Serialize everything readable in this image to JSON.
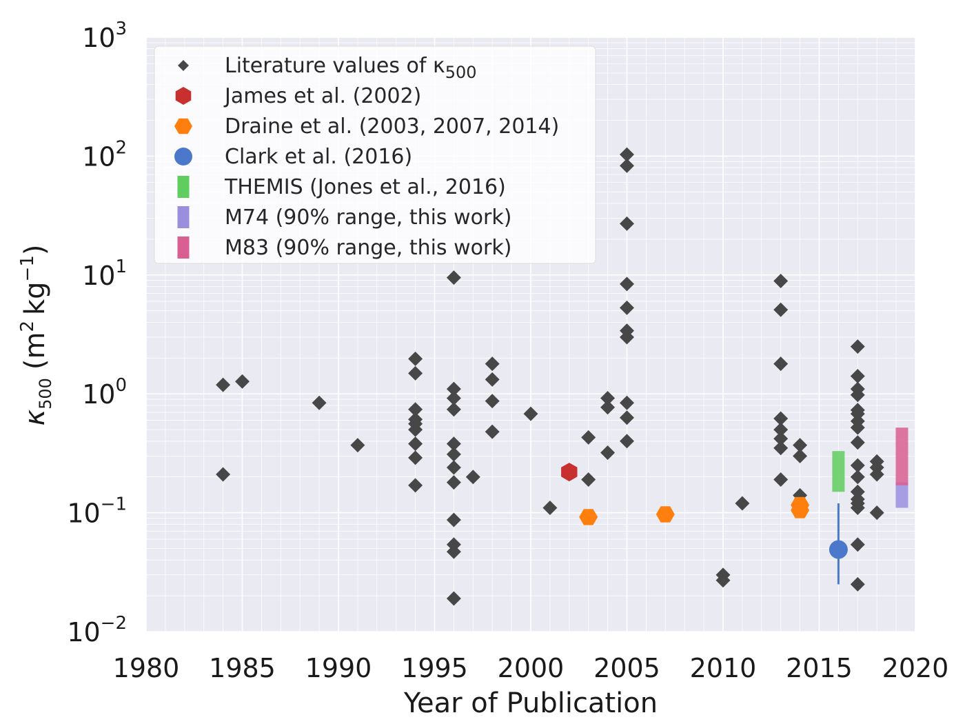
{
  "chart_data": {
    "type": "scatter",
    "xlabel": "Year of Publication",
    "ylabel": {
      "symbol": "κ",
      "sub": "500",
      "units": "(m",
      "units_sup1": "2",
      "units_mid": "kg",
      "units_sup2": "−1",
      "units_end": ")"
    },
    "xlim": [
      1980,
      2020
    ],
    "ylim": [
      0.01,
      1000
    ],
    "yscale": "log",
    "grid": true,
    "legend_position": "top-left",
    "x_ticks": [
      1980,
      1985,
      1990,
      1995,
      2000,
      2005,
      2010,
      2015,
      2020
    ],
    "y_ticks": [
      {
        "value": 0.01,
        "base": "10",
        "exp": "−2"
      },
      {
        "value": 0.1,
        "base": "10",
        "exp": "−1"
      },
      {
        "value": 1,
        "base": "10",
        "exp": "0"
      },
      {
        "value": 10,
        "base": "10",
        "exp": "1"
      },
      {
        "value": 100,
        "base": "10",
        "exp": "2"
      },
      {
        "value": 1000,
        "base": "10",
        "exp": "3"
      }
    ],
    "legend": [
      {
        "label": "Literature values of κ",
        "label_sub": "500",
        "marker": "diamond",
        "color": "#474747"
      },
      {
        "label": "James et al. (2002)",
        "marker": "hexagon",
        "color": "#c8302f"
      },
      {
        "label": "Draine et al. (2003, 2007, 2014)",
        "marker": "hexagon",
        "color": "#ff7f0e"
      },
      {
        "label": "Clark et al. (2016)",
        "marker": "circle",
        "color": "#4c78cb"
      },
      {
        "label": "THEMIS (Jones et al., 2016)",
        "marker": "rect",
        "color": "#5fce5f"
      },
      {
        "label": "M74 (90% range, this work)",
        "marker": "rect",
        "color": "#9a8fdf"
      },
      {
        "label": "M83 (90% range, this work)",
        "marker": "rect",
        "color": "#d95f92"
      }
    ],
    "series": [
      {
        "name": "Literature values of κ500",
        "marker": "diamond",
        "color": "#474747",
        "points": [
          [
            1984,
            1.19
          ],
          [
            1984,
            0.21
          ],
          [
            1985,
            1.27
          ],
          [
            1989,
            0.84
          ],
          [
            1991,
            0.37
          ],
          [
            1994,
            1.97
          ],
          [
            1994,
            1.49
          ],
          [
            1994,
            0.74
          ],
          [
            1994,
            0.61
          ],
          [
            1994,
            0.56
          ],
          [
            1994,
            0.5
          ],
          [
            1994,
            0.38
          ],
          [
            1994,
            0.29
          ],
          [
            1994,
            0.17
          ],
          [
            1996,
            9.5
          ],
          [
            1996,
            1.1
          ],
          [
            1996,
            0.92
          ],
          [
            1996,
            0.74
          ],
          [
            1996,
            0.38
          ],
          [
            1996,
            0.31
          ],
          [
            1996,
            0.24
          ],
          [
            1996,
            0.18
          ],
          [
            1996,
            0.087
          ],
          [
            1996,
            0.054
          ],
          [
            1996,
            0.047
          ],
          [
            1996,
            0.019
          ],
          [
            1997,
            0.2
          ],
          [
            1998,
            1.79
          ],
          [
            1998,
            1.32
          ],
          [
            1998,
            0.87
          ],
          [
            1998,
            0.48
          ],
          [
            2000,
            0.68
          ],
          [
            2001,
            0.11
          ],
          [
            2003,
            0.43
          ],
          [
            2003,
            0.19
          ],
          [
            2004,
            0.92
          ],
          [
            2004,
            0.77
          ],
          [
            2004,
            0.32
          ],
          [
            2005,
            103
          ],
          [
            2005,
            83
          ],
          [
            2005,
            27
          ],
          [
            2005,
            8.4
          ],
          [
            2005,
            5.3
          ],
          [
            2005,
            3.4
          ],
          [
            2005,
            3.0
          ],
          [
            2005,
            0.84
          ],
          [
            2005,
            0.63
          ],
          [
            2005,
            0.4
          ],
          [
            2010,
            0.03
          ],
          [
            2010,
            0.027
          ],
          [
            2011,
            0.12
          ],
          [
            2013,
            8.9
          ],
          [
            2013,
            5.1
          ],
          [
            2013,
            1.79
          ],
          [
            2013,
            0.62
          ],
          [
            2013,
            0.5
          ],
          [
            2013,
            0.42
          ],
          [
            2013,
            0.35
          ],
          [
            2013,
            0.19
          ],
          [
            2014,
            0.37
          ],
          [
            2014,
            0.3
          ],
          [
            2014,
            0.14
          ],
          [
            2017,
            2.5
          ],
          [
            2017,
            1.41
          ],
          [
            2017,
            1.1
          ],
          [
            2017,
            0.98
          ],
          [
            2017,
            0.73
          ],
          [
            2017,
            0.68
          ],
          [
            2017,
            0.59
          ],
          [
            2017,
            0.52
          ],
          [
            2017,
            0.39
          ],
          [
            2017,
            0.25
          ],
          [
            2017,
            0.2
          ],
          [
            2017,
            0.15
          ],
          [
            2017,
            0.13
          ],
          [
            2017,
            0.12
          ],
          [
            2017,
            0.11
          ],
          [
            2017,
            0.054
          ],
          [
            2017,
            0.025
          ],
          [
            2018,
            0.27
          ],
          [
            2018,
            0.24
          ],
          [
            2018,
            0.21
          ],
          [
            2018,
            0.1
          ]
        ]
      },
      {
        "name": "James et al. (2002)",
        "marker": "hexagon",
        "color": "#c8302f",
        "points": [
          [
            2002,
            0.22
          ]
        ]
      },
      {
        "name": "Draine et al. (2003, 2007, 2014)",
        "marker": "hexagon",
        "color": "#ff7f0e",
        "points": [
          [
            2003,
            0.092
          ],
          [
            2007,
            0.097
          ],
          [
            2014,
            0.116
          ],
          [
            2014,
            0.105
          ]
        ]
      },
      {
        "name": "Clark et al. (2016)",
        "marker": "circle",
        "color": "#4c78cb",
        "points": [
          [
            2016,
            0.049
          ]
        ],
        "error_low": 0.025,
        "error_high": 0.12
      }
    ],
    "ranges": [
      {
        "name": "THEMIS (Jones et al., 2016)",
        "x": 2016,
        "low": 0.15,
        "high": 0.33,
        "color": "#5fce5f"
      },
      {
        "name": "M74 (90% range, this work)",
        "x": 2019.3,
        "low": 0.11,
        "high": 0.18,
        "color": "#9a8fdf"
      },
      {
        "name": "M83 (90% range, this work)",
        "x": 2019.3,
        "low": 0.17,
        "high": 0.52,
        "color": "#d95f92"
      }
    ]
  }
}
